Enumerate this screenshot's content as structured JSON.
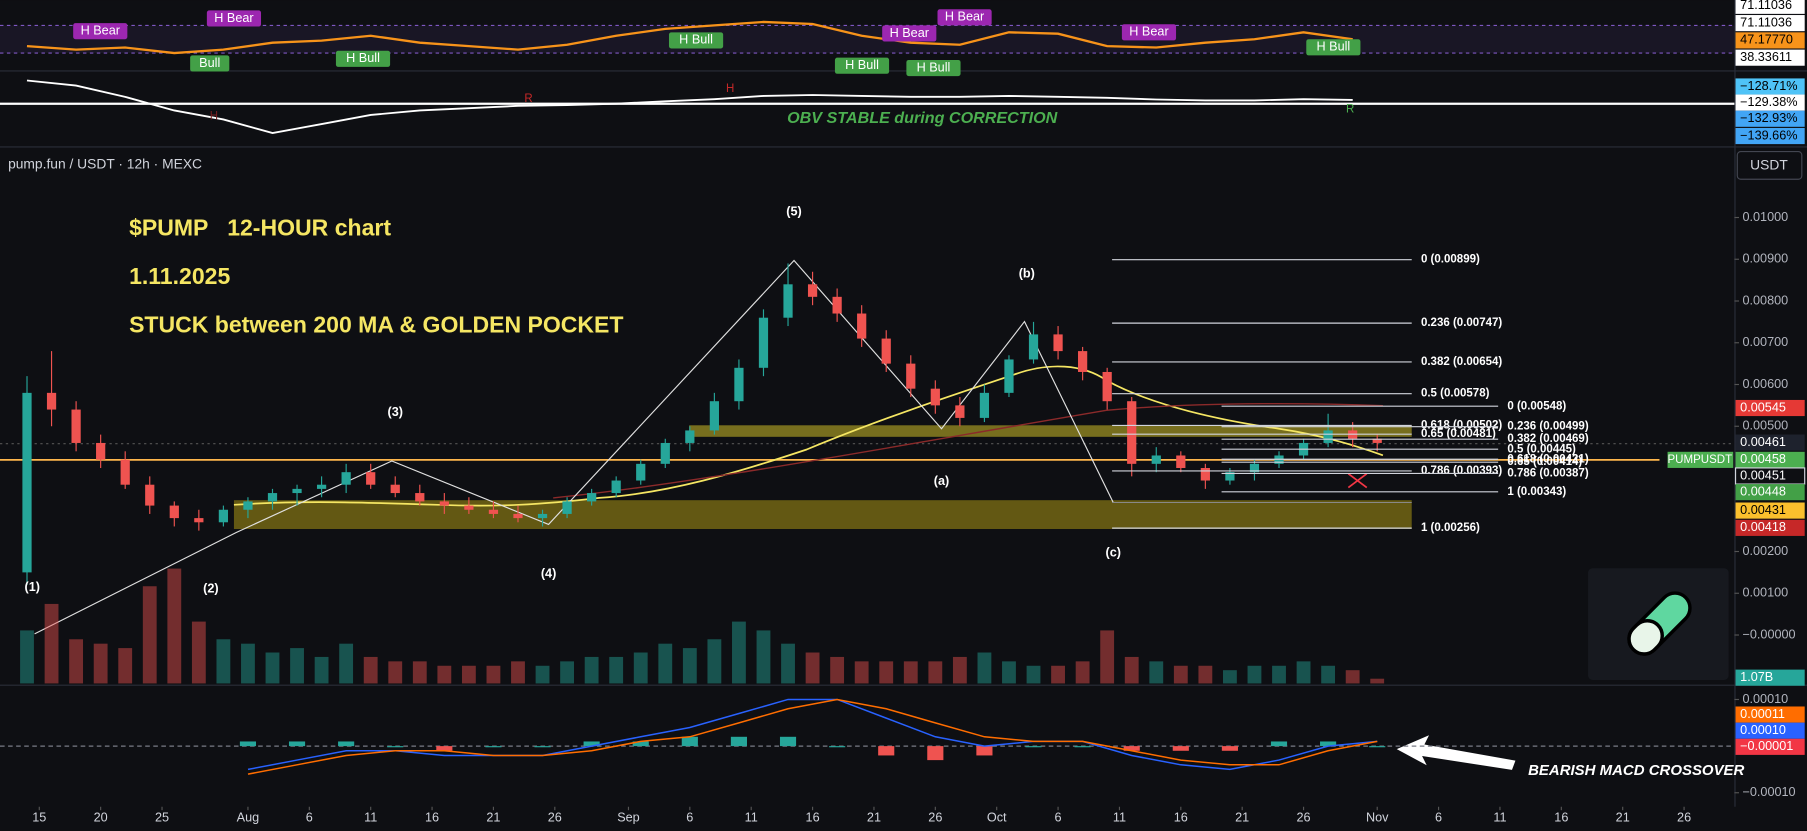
{
  "header": {
    "symbol": "pump.fun / USDT · 12h · MEXC",
    "currency": "USDT"
  },
  "chart_data": [
    {
      "type": "line",
      "color": "#f7931a",
      "ylim": [
        6.7,
        106.7
      ],
      "bands": [
        30,
        70
      ],
      "x": [
        -1,
        3,
        7,
        11,
        15,
        19,
        23,
        27,
        31,
        35,
        39,
        43,
        47,
        51,
        55,
        59,
        63,
        67,
        71,
        75,
        79,
        83,
        87,
        91,
        95,
        99,
        103,
        107
      ],
      "values": [
        40,
        35,
        38,
        30,
        35,
        45,
        48,
        55,
        45,
        40,
        35,
        42,
        55,
        65,
        70,
        75,
        72,
        55,
        45,
        42,
        60,
        58,
        40,
        38,
        45,
        50,
        60,
        50
      ],
      "flags": [
        {
          "value": 71.11036,
          "label": "71.11036",
          "color": "#ffffff",
          "text_color": "#000000"
        },
        {
          "value": 71.11036,
          "label": "71.11036",
          "color": "#ffffff",
          "text_color": "#000000"
        },
        {
          "value": 47.1777,
          "label": "47.17770",
          "color": "#f7931a",
          "text_color": "#000000"
        },
        {
          "value": 38.33611,
          "label": "38.33611",
          "color": "#ffffff",
          "text_color": "#000000"
        }
      ],
      "annotations": [
        {
          "text": "H Bear",
          "color": "#9c27b0"
        },
        {
          "text": "H Bear",
          "color": "#9c27b0"
        },
        {
          "text": "Bull",
          "color": "#43a047"
        },
        {
          "text": "H Bull",
          "color": "#43a047"
        },
        {
          "text": "H Bull",
          "color": "#43a047"
        },
        {
          "text": "H Bear",
          "color": "#9c27b0"
        },
        {
          "text": "H Bear",
          "color": "#9c27b0"
        },
        {
          "text": "H Bull",
          "color": "#43a047"
        },
        {
          "text": "H Bull",
          "color": "#43a047"
        },
        {
          "text": "H Bear",
          "color": "#9c27b0"
        },
        {
          "text": "H Bull",
          "color": "#43a047"
        }
      ]
    },
    {
      "type": "line",
      "color": "#ffffff",
      "ylim": [
        -141.69,
        -125.66
      ],
      "x": [
        -1,
        3,
        7,
        11,
        15,
        19,
        23,
        27,
        31,
        35,
        39,
        43,
        47,
        51,
        55,
        59,
        63,
        67,
        71,
        75,
        79,
        83,
        87,
        91,
        95,
        99,
        103,
        107
      ],
      "values": [
        -127.4,
        -128.5,
        -131,
        -134,
        -136,
        -139,
        -137,
        -135,
        -134,
        -133.5,
        -133,
        -132.8,
        -132.5,
        -132,
        -131.5,
        -130.8,
        -130.6,
        -130.8,
        -131,
        -131,
        -130.8,
        -131,
        -131.2,
        -131.6,
        -131.8,
        -131.8,
        -131.5,
        -131.7
      ],
      "flags": [
        {
          "value": -128.71,
          "label": "−128.71%",
          "color": "#4fc3f7",
          "text_color": "#000000"
        },
        {
          "value": -129.38,
          "label": "−129.38%",
          "color": "#ffffff",
          "text_color": "#000000"
        },
        {
          "value": -132.93,
          "label": "−132.93%",
          "color": "#42a5f5",
          "text_color": "#000000"
        },
        {
          "value": -139.66,
          "label": "−139.66%",
          "color": "#42a5f5",
          "text_color": "#000000"
        }
      ],
      "annotations": [
        {
          "text": "OBV STABLE during CORRECTION",
          "color": "#4caf50"
        },
        {
          "text": "H",
          "color": "#7a1f1f"
        },
        {
          "text": "R",
          "color": "#c62828"
        },
        {
          "text": "H",
          "color": "#c62828"
        },
        {
          "text": "R",
          "color": "#4caf50"
        }
      ]
    },
    {
      "type": "candlestick",
      "up_color": "#26a69a",
      "down_color": "#ef5350",
      "xlim": [
        -3.2,
        138.1
      ],
      "xticks": [
        {
          "value": 0,
          "label": "15"
        },
        {
          "value": 5,
          "label": "20"
        },
        {
          "value": 10,
          "label": "25"
        },
        {
          "value": 17,
          "label": "Aug"
        },
        {
          "value": 22,
          "label": "6"
        },
        {
          "value": 27,
          "label": "11"
        },
        {
          "value": 32,
          "label": "16"
        },
        {
          "value": 37,
          "label": "21"
        },
        {
          "value": 42,
          "label": "26"
        },
        {
          "value": 48,
          "label": "Sep"
        },
        {
          "value": 53,
          "label": "6"
        },
        {
          "value": 58,
          "label": "11"
        },
        {
          "value": 63,
          "label": "16"
        },
        {
          "value": 68,
          "label": "21"
        },
        {
          "value": 73,
          "label": "26"
        },
        {
          "value": 78,
          "label": "Oct"
        },
        {
          "value": 83,
          "label": "6"
        },
        {
          "value": 88,
          "label": "11"
        },
        {
          "value": 93,
          "label": "16"
        },
        {
          "value": 98,
          "label": "21"
        },
        {
          "value": 103,
          "label": "26"
        },
        {
          "value": 109,
          "label": "Nov"
        },
        {
          "value": 114,
          "label": "6"
        },
        {
          "value": 119,
          "label": "11"
        },
        {
          "value": 124,
          "label": "16"
        },
        {
          "value": 129,
          "label": "21"
        },
        {
          "value": 134,
          "label": "26"
        }
      ],
      "ylim": [
        -0.00116,
        0.01162
      ],
      "yticks": [
        {
          "value": 0.01,
          "label": "0.01000"
        },
        {
          "value": 0.009,
          "label": "0.00900"
        },
        {
          "value": 0.008,
          "label": "0.00800"
        },
        {
          "value": 0.007,
          "label": "0.00700"
        },
        {
          "value": 0.006,
          "label": "0.00600"
        },
        {
          "value": 0.005,
          "label": "0.00500"
        },
        {
          "value": 0.002,
          "label": "0.00200"
        },
        {
          "value": 0.001,
          "label": "0.00100"
        },
        {
          "value": 0,
          "label": "−0.00000"
        }
      ],
      "x": [
        -1,
        1,
        3,
        5,
        7,
        9,
        11,
        13,
        15,
        17,
        19,
        21,
        23,
        25,
        27,
        29,
        31,
        33,
        35,
        37,
        39,
        41,
        43,
        45,
        47,
        49,
        51,
        53,
        55,
        57,
        59,
        61,
        63,
        65,
        67,
        69,
        71,
        73,
        75,
        77,
        79,
        81,
        83,
        85,
        87,
        89,
        91,
        93,
        95,
        97,
        99,
        101,
        103,
        105,
        107,
        109
      ],
      "open": [
        0.0015,
        0.0058,
        0.0054,
        0.0046,
        0.0042,
        0.0036,
        0.0031,
        0.0028,
        0.0027,
        0.003,
        0.0032,
        0.0034,
        0.0035,
        0.0036,
        0.0039,
        0.0036,
        0.0034,
        0.0032,
        0.0031,
        0.003,
        0.0029,
        0.0028,
        0.0029,
        0.0032,
        0.0034,
        0.0037,
        0.0041,
        0.0046,
        0.0049,
        0.0056,
        0.0064,
        0.0076,
        0.0084,
        0.0081,
        0.0077,
        0.0071,
        0.0065,
        0.0059,
        0.0055,
        0.0052,
        0.0058,
        0.0066,
        0.0072,
        0.0068,
        0.0063,
        0.0056,
        0.0041,
        0.0043,
        0.004,
        0.0037,
        0.0039,
        0.0041,
        0.0043,
        0.0046,
        0.0049,
        0.0047
      ],
      "high": [
        0.0062,
        0.0068,
        0.0056,
        0.0048,
        0.0044,
        0.0038,
        0.0032,
        0.003,
        0.0031,
        0.0033,
        0.0035,
        0.0036,
        0.0038,
        0.0041,
        0.0041,
        0.0038,
        0.0036,
        0.0034,
        0.0033,
        0.0032,
        0.0031,
        0.003,
        0.0033,
        0.0035,
        0.0038,
        0.0042,
        0.0047,
        0.005,
        0.0058,
        0.0066,
        0.0078,
        0.0089,
        0.0087,
        0.0083,
        0.0079,
        0.0073,
        0.0067,
        0.0061,
        0.0057,
        0.006,
        0.0067,
        0.0075,
        0.0074,
        0.0069,
        0.0064,
        0.0057,
        0.0045,
        0.0044,
        0.0041,
        0.004,
        0.0042,
        0.0044,
        0.0047,
        0.0053,
        0.0051,
        0.0048
      ],
      "low": [
        0.0012,
        0.005,
        0.0044,
        0.004,
        0.0035,
        0.0029,
        0.0026,
        0.0025,
        0.0026,
        0.0028,
        0.003,
        0.0031,
        0.0033,
        0.0034,
        0.0035,
        0.0033,
        0.0031,
        0.0029,
        0.0029,
        0.0028,
        0.0027,
        0.0026,
        0.0028,
        0.0031,
        0.0033,
        0.0036,
        0.004,
        0.0044,
        0.0048,
        0.0054,
        0.0062,
        0.0074,
        0.0079,
        0.0075,
        0.0069,
        0.0063,
        0.0057,
        0.0053,
        0.005,
        0.0051,
        0.0057,
        0.0065,
        0.0066,
        0.0061,
        0.0054,
        0.0038,
        0.0039,
        0.0039,
        0.0035,
        0.0036,
        0.0037,
        0.004,
        0.0042,
        0.0045,
        0.0045,
        0.0044
      ],
      "close": [
        0.0058,
        0.0054,
        0.0046,
        0.0042,
        0.0036,
        0.0031,
        0.0028,
        0.0027,
        0.003,
        0.0032,
        0.0034,
        0.0035,
        0.0036,
        0.0039,
        0.0036,
        0.0034,
        0.0032,
        0.0031,
        0.003,
        0.0029,
        0.0028,
        0.0029,
        0.0032,
        0.0034,
        0.0037,
        0.0041,
        0.0046,
        0.0049,
        0.0056,
        0.0064,
        0.0076,
        0.0084,
        0.0081,
        0.0077,
        0.0071,
        0.0065,
        0.0059,
        0.0055,
        0.0052,
        0.0058,
        0.0066,
        0.0072,
        0.0068,
        0.0063,
        0.0056,
        0.0041,
        0.0043,
        0.004,
        0.0037,
        0.0039,
        0.0041,
        0.0043,
        0.0046,
        0.0049,
        0.0047,
        0.0046
      ],
      "volume": {
        "values": [
          12,
          18,
          10,
          9,
          8,
          22,
          26,
          14,
          10,
          9,
          7,
          8,
          6,
          9,
          6,
          5,
          5,
          4,
          4,
          4,
          5,
          4,
          5,
          6,
          6,
          7,
          9,
          8,
          10,
          14,
          12,
          9,
          7,
          6,
          5,
          5,
          5,
          5,
          6,
          7,
          5,
          4,
          4,
          5,
          12,
          6,
          5,
          4,
          4,
          3,
          4,
          4,
          5,
          4,
          3,
          1.07
        ],
        "vlim": [
          0,
          30
        ],
        "value_label": "1.07B",
        "flag_color": "#26a69a"
      },
      "flags": [
        {
          "value": 0.00545,
          "label": "0.00545",
          "color": "#e53935",
          "text_color": "#ffffff"
        },
        {
          "value": 0.00461,
          "label": "0.00461",
          "color": "#1e222d",
          "text_color": "#ffffff"
        },
        {
          "value": 0.00458,
          "label": "0.00458",
          "name": "PUMPUSDT",
          "color": "#4caf50",
          "text_color": "#ffffff"
        },
        {
          "value": 0.00451,
          "label": "0.00451",
          "color": "#0e0f13",
          "text_color": "#ffffff"
        },
        {
          "value": 0.00448,
          "label": "0.00448",
          "color": "#43a047",
          "text_color": "#ffffff"
        },
        {
          "value": 0.00431,
          "label": "0.00431",
          "color": "#fbc02d",
          "text_color": "#000000"
        },
        {
          "value": 0.00418,
          "label": "0.00418",
          "color": "#c62828",
          "text_color": "#ffffff"
        }
      ],
      "fib_levels": [
        {
          "value": 0.00899,
          "label": "0 (0.00899)"
        },
        {
          "value": 0.00747,
          "label": "0.236 (0.00747)"
        },
        {
          "value": 0.00654,
          "label": "0.382 (0.00654)"
        },
        {
          "value": 0.00578,
          "label": "0.5 (0.00578)"
        },
        {
          "value": 0.00502,
          "label": "0.618 (0.00502)"
        },
        {
          "value": 0.00481,
          "label": "0.65 (0.00481)"
        },
        {
          "value": 0.00393,
          "label": "0.786 (0.00393)"
        },
        {
          "value": 0.00256,
          "label": "1 (0.00256)"
        }
      ],
      "fib_levels_2": [
        {
          "value": 0.00548,
          "label": "0 (0.00548)"
        },
        {
          "value": 0.00499,
          "label": "0.236 (0.00499)"
        },
        {
          "value": 0.00469,
          "label": "0.382 (0.00469)"
        },
        {
          "value": 0.00445,
          "label": "0.5 (0.00445)"
        },
        {
          "value": 0.00421,
          "label": "0.618 (0.00421)"
        },
        {
          "value": 0.00414,
          "label": "0.65 (0.00414)"
        },
        {
          "value": 0.00387,
          "label": "0.786 (0.00387)"
        },
        {
          "value": 0.00343,
          "label": "1 (0.00343)"
        }
      ],
      "title": "$PUMP   12-HOUR chart",
      "date": "1.11.2025",
      "subtitle": "STUCK between 200 MA & GOLDEN POCKET",
      "wave_labels": [
        "(5)",
        "(3)",
        "(b)",
        "(a)",
        "(4)",
        "(2)",
        "(1)",
        "(c)"
      ]
    },
    {
      "type": "macd",
      "ylim": [
        -0.00013,
        0.000127
      ],
      "yticks": [
        {
          "value": 0.0001,
          "label": "0.00010"
        },
        {
          "value": -0.0001,
          "label": "−0.00010"
        }
      ],
      "x": [
        17,
        21,
        25,
        29,
        33,
        37,
        41,
        45,
        49,
        53,
        57,
        61,
        65,
        69,
        73,
        77,
        81,
        85,
        89,
        93,
        97,
        101,
        105,
        109
      ],
      "macd": [
        -5e-05,
        -3e-05,
        -1e-05,
        -1e-05,
        -2e-05,
        -2e-05,
        -2e-05,
        0,
        2e-05,
        4e-05,
        7e-05,
        0.0001,
        0.0001,
        6e-05,
        2e-05,
        0,
        1e-05,
        1e-05,
        -2e-05,
        -4e-05,
        -5e-05,
        -3e-05,
        0,
        1e-05
      ],
      "signal": [
        -6e-05,
        -4e-05,
        -2e-05,
        -1e-05,
        -1e-05,
        -2e-05,
        -2e-05,
        -1e-05,
        1e-05,
        2e-05,
        5e-05,
        8e-05,
        0.0001,
        8e-05,
        5e-05,
        2e-05,
        1e-05,
        1e-05,
        -1e-05,
        -3e-05,
        -4e-05,
        -4e-05,
        -1e-05,
        1e-05
      ],
      "histogram": [
        1e-05,
        1e-05,
        1e-05,
        0,
        -1e-05,
        0,
        0,
        1e-05,
        1e-05,
        2e-05,
        2e-05,
        2e-05,
        0,
        -2e-05,
        -3e-05,
        -2e-05,
        0,
        0,
        -1e-05,
        -1e-05,
        -1e-05,
        1e-05,
        1e-05,
        0
      ],
      "macd_color": "#2962ff",
      "signal_color": "#ff6d00",
      "up_color": "#26a69a",
      "down_color": "#ef5350",
      "flags": [
        {
          "value": 0.00011,
          "label": "0.00011",
          "color": "#ff6d00",
          "text_color": "#ffffff"
        },
        {
          "value": 0.0001,
          "label": "0.00010",
          "color": "#2962ff",
          "text_color": "#ffffff"
        },
        {
          "value": -1e-05,
          "label": "−0.00001",
          "color": "#f23645",
          "text_color": "#ffffff"
        }
      ],
      "annotation": "BEARISH MACD CROSSOVER"
    }
  ]
}
